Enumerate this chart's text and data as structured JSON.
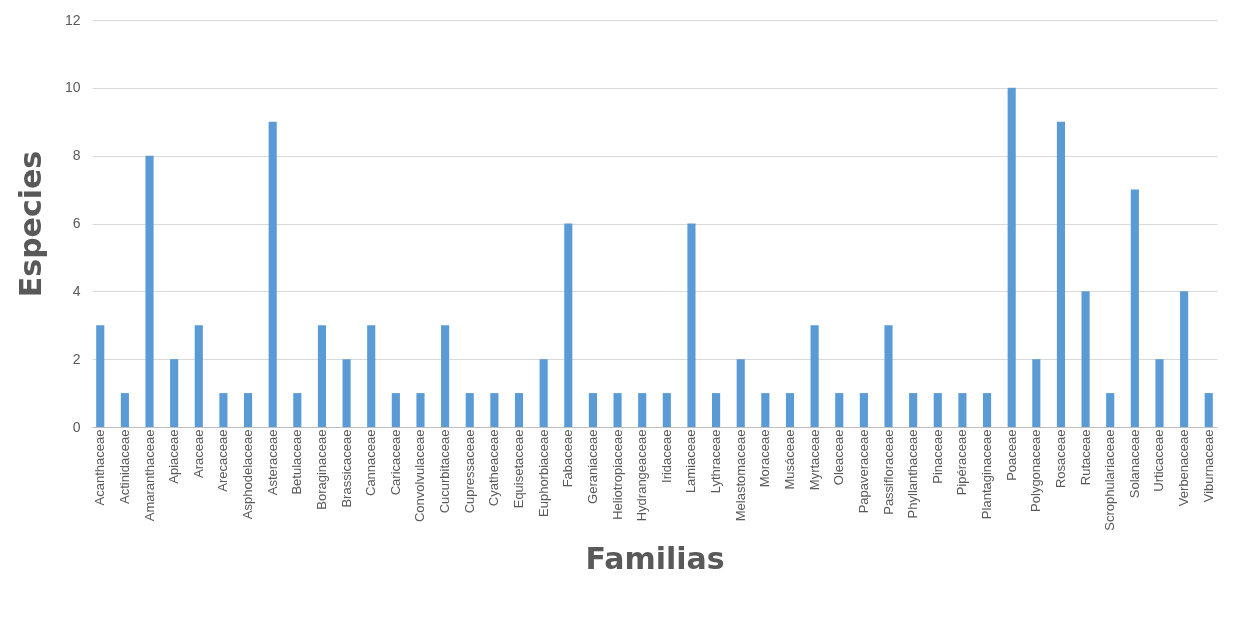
{
  "chart_data": {
    "type": "bar",
    "xlabel": "Familias",
    "ylabel": "Especies",
    "categories": [
      "Acanthaceae",
      "Actinidaceae",
      "Amaranthaceae",
      "Apiaceae",
      "Araceae",
      "Arecaceae",
      "Asphodelaceae",
      "Asteraceae",
      "Betulaceae",
      "Boraginaceae",
      "Brassicaceae",
      "Cannaceae",
      "Caricaceae",
      "Convolvulaceae",
      "Cucurbitaceae",
      "Cupressaceae",
      "Cyatheaceae",
      "Equisetaceae",
      "Euphorbiaceae",
      "Fabaceae",
      "Geraniaceae",
      "Heliotropiaceae",
      "Hydrangeaceae",
      "Iridaceae",
      "Lamiaceae",
      "Lythraceae",
      "Melastomaceae",
      "Moraceae",
      "Musáceae",
      "Myrtaceae",
      "Oleaceae",
      "Papaveraceae",
      "Passifloraceae",
      "Phyllanthaceae",
      "Pinaceae",
      "Pipéraceae",
      "Plantaginaceae",
      "Poaceae",
      "Polygonaceae",
      "Rosaceae",
      "Rutaceae",
      "Scrophulariaceae",
      "Solanaceae",
      "Urticaceae",
      "Verbenaceae",
      "Viburnaceae"
    ],
    "values": [
      3,
      1,
      8,
      2,
      3,
      1,
      1,
      9,
      1,
      3,
      2,
      3,
      1,
      1,
      3,
      1,
      1,
      1,
      2,
      6,
      1,
      1,
      1,
      1,
      6,
      1,
      2,
      1,
      1,
      3,
      1,
      1,
      3,
      1,
      1,
      1,
      1,
      10,
      2,
      9,
      4,
      1,
      7,
      2,
      4,
      1
    ],
    "color": "#5b9bd5",
    "ylim": [
      0,
      12
    ],
    "yticks": [
      0,
      2,
      4,
      6,
      8,
      10,
      12
    ],
    "grid": "y"
  }
}
